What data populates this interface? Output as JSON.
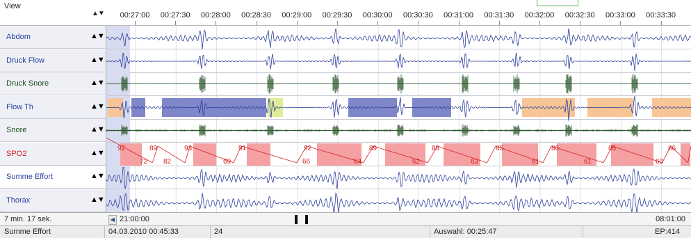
{
  "header": {
    "view_label": "View",
    "arrows": "▲▼",
    "time_ticks": [
      "00:27:00",
      "00:27:30",
      "00:28:00",
      "00:28:30",
      "00:29:00",
      "00:29:30",
      "00:30:00",
      "00:30:30",
      "00:31:00",
      "00:31:30",
      "00:32:00",
      "00:32:30",
      "00:33:00",
      "00:33:30"
    ]
  },
  "channels": [
    {
      "name": "Abdom",
      "color": "#2a3f9a",
      "arrows": "▲▼"
    },
    {
      "name": "Druck Flow",
      "color": "#2a3f9a",
      "arrows": "▲▼"
    },
    {
      "name": "Druck Snore",
      "color": "#1f4d1f",
      "arrows": "▲▼"
    },
    {
      "name": "Flow Th",
      "color": "#2a3f9a",
      "arrows": "▲▼"
    },
    {
      "name": "Snore",
      "color": "#1f4d1f",
      "arrows": "▲▼"
    },
    {
      "name": "SPO2",
      "color": "#d42020",
      "arrows": "▲▼"
    },
    {
      "name": "Summe Effort",
      "color": "#2a3f9a",
      "arrows": "▲▼",
      "selected": true
    },
    {
      "name": "Thorax",
      "color": "#2a3f9a",
      "arrows": "▲▼"
    }
  ],
  "spo2_labels": {
    "peaks": [
      "92",
      "89",
      "93",
      "91",
      "92",
      "89",
      "88",
      "85",
      "86",
      "85",
      "86"
    ],
    "troughs": [
      "72",
      "82",
      "69",
      "66",
      "64",
      "62",
      "63",
      "61",
      "61",
      "60"
    ]
  },
  "colors": {
    "apnea_blue": "#7f86c9",
    "hypopnea_orange": "#f8c596",
    "yellow_event": "#e2eb9a",
    "desat_red": "#f5a0a2",
    "selection_blue": "#d8dcf0",
    "trace_blue": "#2a3f9a",
    "trace_green": "#1f4d1f",
    "spo2_red": "#d42020"
  },
  "scrollbar": {
    "duration": "7 min.  17 sek.",
    "start_time": "21:00:00",
    "end_time": "08:01:00",
    "left_arrow": "◀"
  },
  "status": {
    "channel": "Summe Effort",
    "datetime": "04.03.2010  00:45:33",
    "value": "24",
    "selection": "Auswahl: 00:25:47",
    "epoch": "EP:414"
  }
}
